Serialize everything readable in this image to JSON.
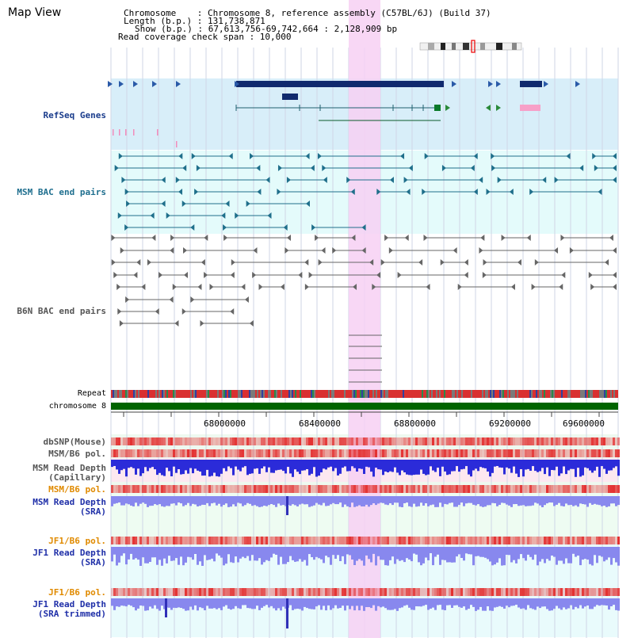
{
  "page": {
    "title": "Map View"
  },
  "header": {
    "chromosome_line": "Chromosome    : Chromosome 8, reference assembly (C57BL/6J) (Build 37)",
    "length_line": "Length (b.p.) : 131,738,871",
    "show_line": "Show (b.p.) : 67,613,756-69,742,664 : 2,128,909 bp",
    "coverage_line": "Read coverage check span : 10,000"
  },
  "tracks": {
    "refseq": "RefSeq Genes",
    "msm_bac": "MSM BAC end pairs",
    "b6n_bac": "B6N BAC end pairs",
    "repeat": "Repeat",
    "chromosome": "chromosome 8",
    "dbsnp": "dbSNP(Mouse)",
    "msm_b6_pol_1": "MSM/B6 pol.",
    "msm_depth_cap_1": "MSM Read Depth",
    "msm_depth_cap_2": "(Capillary)",
    "msm_b6_pol_2": "MSM/B6 pol.",
    "msm_depth_sra_1": "MSM Read Depth",
    "msm_depth_sra_2": "(SRA)",
    "jf1_b6_pol_1": "JF1/B6 pol.",
    "jf1_depth_sra_1": "JF1 Read Depth",
    "jf1_depth_sra_2": "(SRA)",
    "jf1_b6_pol_2": "JF1/B6 pol.",
    "jf1_depth_trim_1": "JF1 Read Depth",
    "jf1_depth_trim_2": "(SRA trimmed)"
  },
  "axis": {
    "ticks": [
      "68000000",
      "68400000",
      "68800000",
      "69200000",
      "69600000"
    ]
  },
  "colors": {
    "refseq_bg": "#d8eef9",
    "msm_bg": "#e4fbfb",
    "b6n_bg": "#ffffff",
    "highlight": "#f7d0f3",
    "chromosome": "#006400",
    "depth_blue": "#2b2bd9",
    "depth_light": "#8888ee",
    "pol_red": "#e33030"
  }
}
